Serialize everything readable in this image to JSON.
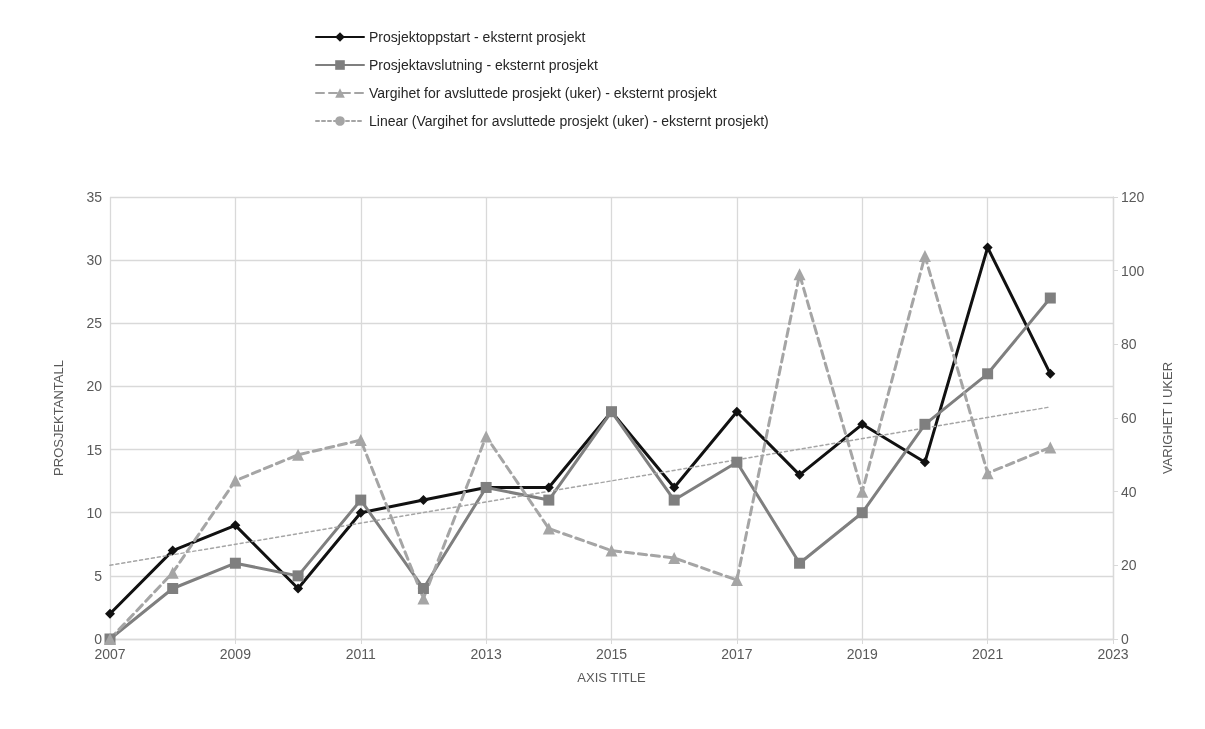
{
  "chart_data": {
    "type": "line",
    "xlabel": "AXIS TITLE",
    "ylabel": "PROSJEKTANTALL",
    "y2label": "VARIGHET I UKER",
    "x": [
      2007,
      2008,
      2009,
      2010,
      2011,
      2012,
      2013,
      2014,
      2015,
      2016,
      2017,
      2018,
      2019,
      2020,
      2021,
      2022
    ],
    "series": [
      {
        "name": "Prosjektoppstart - eksternt prosjekt",
        "color": "#111111",
        "marker": "diamond",
        "line_style": "solid",
        "values": [
          2,
          7,
          9,
          4,
          10,
          11,
          12,
          12,
          18,
          12,
          18,
          13,
          17,
          14,
          31,
          21
        ]
      },
      {
        "name": "Prosjektavslutning - eksternt prosjekt",
        "color": "#7f7f7f",
        "marker": "square",
        "line_style": "solid",
        "values": [
          0,
          4,
          6,
          5,
          11,
          4,
          12,
          11,
          18,
          11,
          14,
          6,
          10,
          17,
          21,
          27
        ]
      },
      {
        "name": "Vargihet for avsluttede prosjekt (uker) - eksternt prosjekt",
        "color": "#a5a5a5",
        "marker": "triangle",
        "line_style": "dashed",
        "axis": "y2",
        "values": [
          0,
          18,
          43,
          50,
          54,
          11,
          55,
          30,
          24,
          22,
          16,
          99,
          40,
          104,
          45,
          52
        ]
      },
      {
        "name": "Linear (Vargihet for avsluttede prosjekt (uker) - eksternt prosjekt)",
        "color": "#a5a5a5",
        "marker": "none",
        "line_style": "dotted",
        "axis": "y2",
        "x": [
          2007,
          2022
        ],
        "values": [
          20,
          63
        ]
      }
    ],
    "xlim": [
      2007,
      2023
    ],
    "xticks": [
      2007,
      2009,
      2011,
      2013,
      2015,
      2017,
      2019,
      2021,
      2023
    ],
    "ylim": [
      0,
      35
    ],
    "yticks": [
      0,
      5,
      10,
      15,
      20,
      25,
      30,
      35
    ],
    "y2lim": [
      0,
      120
    ],
    "y2ticks": [
      0,
      20,
      40,
      60,
      80,
      100,
      120
    ],
    "grid": true,
    "legend": "top"
  }
}
